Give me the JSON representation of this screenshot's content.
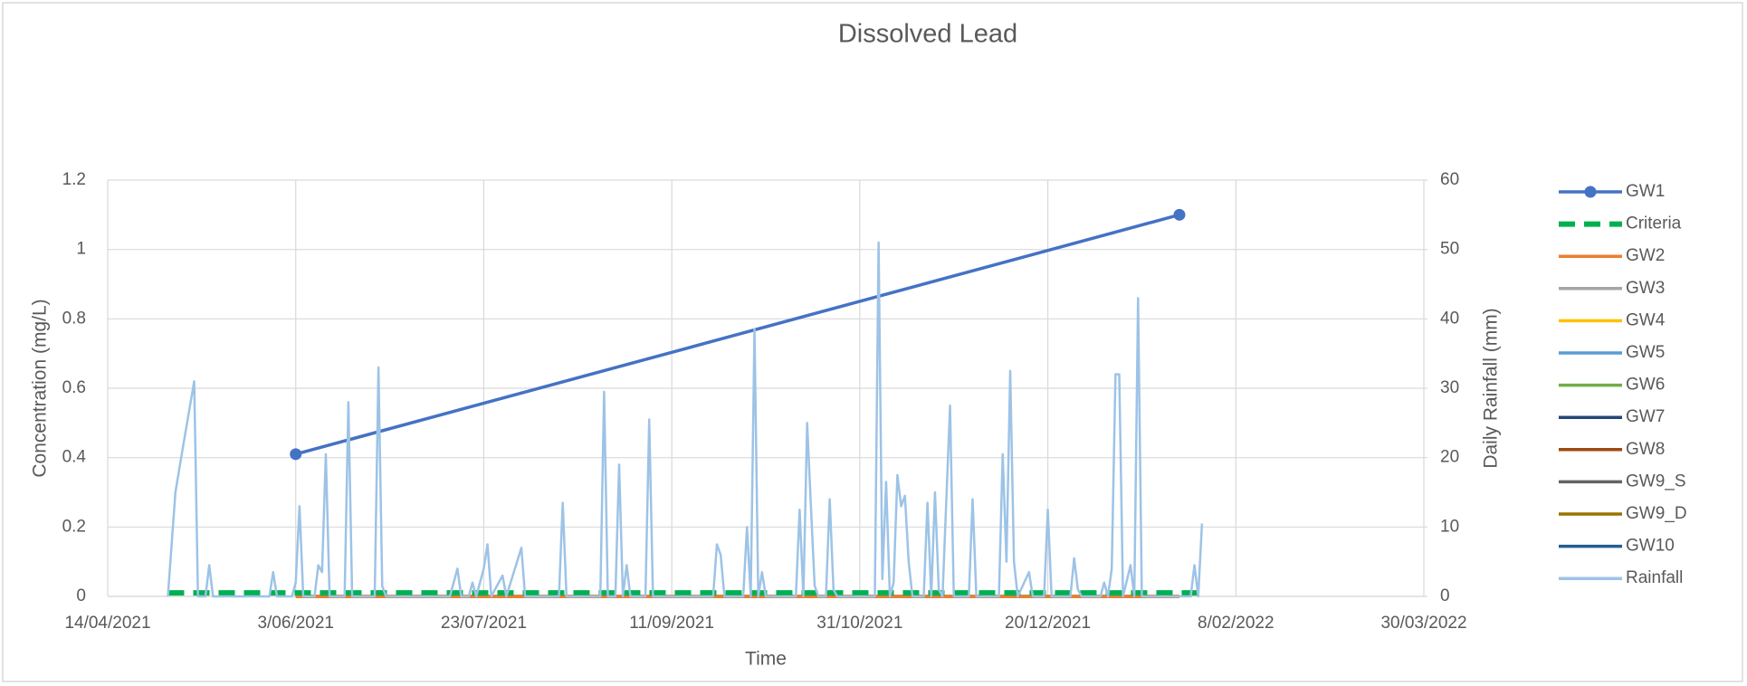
{
  "chart_data": {
    "type": "line",
    "title": "Dissolved Lead",
    "x_label": "Time",
    "y_label": "Concentration (mg/L)",
    "y2_label": "Daily Rainfall (mm)",
    "xlim": [
      "2021-04-14",
      "2022-03-30"
    ],
    "xticks": [
      {
        "value": "2021-04-14",
        "label": "14/04/2021"
      },
      {
        "value": "2021-06-03",
        "label": "3/06/2021"
      },
      {
        "value": "2021-07-23",
        "label": "23/07/2021"
      },
      {
        "value": "2021-09-11",
        "label": "11/09/2021"
      },
      {
        "value": "2021-10-31",
        "label": "31/10/2021"
      },
      {
        "value": "2021-12-20",
        "label": "20/12/2021"
      },
      {
        "value": "2022-02-08",
        "label": "8/02/2022"
      },
      {
        "value": "2022-03-30",
        "label": "30/03/2022"
      }
    ],
    "ylim": [
      0,
      1.2
    ],
    "yticks": [
      0,
      0.2,
      0.4,
      0.6,
      0.8,
      1,
      1.2
    ],
    "y2lim": [
      0,
      60
    ],
    "y2ticks": [
      0,
      10,
      20,
      30,
      40,
      50,
      60
    ],
    "grid": true,
    "legend": "right",
    "series": [
      {
        "name": "GW1",
        "color": "#4472c4",
        "marker": true,
        "x": [
          "2021-06-03",
          "2022-01-24"
        ],
        "values": [
          0.41,
          1.1
        ]
      },
      {
        "name": "Criteria",
        "color": "#00b050",
        "dash": true,
        "x": [
          "2021-04-30",
          "2022-01-30"
        ],
        "values": [
          0.01,
          0.01
        ]
      },
      {
        "name": "GW2",
        "color": "#ed7d31",
        "x": [
          "2021-06-03",
          "2022-01-24"
        ],
        "values": [
          0,
          0
        ]
      },
      {
        "name": "GW3",
        "color": "#a5a5a5",
        "x": [
          "2021-06-03",
          "2022-01-24"
        ],
        "values": [
          0,
          0
        ]
      },
      {
        "name": "GW4",
        "color": "#ffc000",
        "x": [
          "2021-06-03",
          "2022-01-24"
        ],
        "values": [
          0,
          0
        ]
      },
      {
        "name": "GW5",
        "color": "#5b9bd5",
        "x": [
          "2021-06-03",
          "2022-01-24"
        ],
        "values": [
          0,
          0
        ]
      },
      {
        "name": "GW6",
        "color": "#70ad47",
        "x": [
          "2021-06-03",
          "2022-01-24"
        ],
        "values": [
          0,
          0
        ]
      },
      {
        "name": "GW7",
        "color": "#264478",
        "x": [
          "2021-06-03",
          "2022-01-24"
        ],
        "values": [
          0,
          0
        ]
      },
      {
        "name": "GW8",
        "color": "#9e480e",
        "x": [
          "2021-06-03",
          "2022-01-24"
        ],
        "values": [
          0,
          0
        ]
      },
      {
        "name": "GW9_S",
        "color": "#636363",
        "x": [
          "2021-06-03",
          "2022-01-24"
        ],
        "values": [
          0,
          0
        ]
      },
      {
        "name": "GW9_D",
        "color": "#997300",
        "x": [
          "2021-06-03",
          "2022-01-24"
        ],
        "values": [
          0,
          0
        ]
      },
      {
        "name": "GW10",
        "color": "#255e91",
        "x": [
          "2021-06-03",
          "2022-01-24"
        ],
        "values": [
          0,
          0
        ]
      },
      {
        "name": "Rainfall",
        "color": "#9dc3e6",
        "axis": "y2",
        "x": [
          "2021-04-30",
          "2021-05-02",
          "2021-05-04",
          "2021-05-07",
          "2021-05-08",
          "2021-05-10",
          "2021-05-11",
          "2021-05-12",
          "2021-05-27",
          "2021-05-28",
          "2021-05-29",
          "2021-06-02",
          "2021-06-03",
          "2021-06-04",
          "2021-06-05",
          "2021-06-08",
          "2021-06-09",
          "2021-06-10",
          "2021-06-11",
          "2021-06-12",
          "2021-06-16",
          "2021-06-17",
          "2021-06-18",
          "2021-06-24",
          "2021-06-25",
          "2021-06-26",
          "2021-06-27",
          "2021-07-14",
          "2021-07-16",
          "2021-07-17",
          "2021-07-19",
          "2021-07-20",
          "2021-07-21",
          "2021-07-23",
          "2021-07-24",
          "2021-07-25",
          "2021-07-28",
          "2021-07-29",
          "2021-08-02",
          "2021-08-03",
          "2021-08-12",
          "2021-08-13",
          "2021-08-14",
          "2021-08-23",
          "2021-08-24",
          "2021-08-25",
          "2021-08-27",
          "2021-08-28",
          "2021-08-29",
          "2021-08-30",
          "2021-08-31",
          "2021-09-04",
          "2021-09-05",
          "2021-09-06",
          "2021-09-22",
          "2021-09-23",
          "2021-09-24",
          "2021-09-25",
          "2021-09-30",
          "2021-10-01",
          "2021-10-02",
          "2021-10-03",
          "2021-10-04",
          "2021-10-05",
          "2021-10-06",
          "2021-10-14",
          "2021-10-15",
          "2021-10-16",
          "2021-10-17",
          "2021-10-18",
          "2021-10-19",
          "2021-10-20",
          "2021-10-22",
          "2021-10-23",
          "2021-10-24",
          "2021-10-25",
          "2021-11-04",
          "2021-11-05",
          "2021-11-06",
          "2021-11-07",
          "2021-11-08",
          "2021-11-09",
          "2021-11-10",
          "2021-11-11",
          "2021-11-12",
          "2021-11-13",
          "2021-11-14",
          "2021-11-17",
          "2021-11-18",
          "2021-11-19",
          "2021-11-20",
          "2021-11-21",
          "2021-11-22",
          "2021-11-24",
          "2021-11-25",
          "2021-11-29",
          "2021-11-30",
          "2021-12-01",
          "2021-12-07",
          "2021-12-08",
          "2021-12-09",
          "2021-12-10",
          "2021-12-11",
          "2021-12-12",
          "2021-12-15",
          "2021-12-16",
          "2021-12-19",
          "2021-12-20",
          "2021-12-21",
          "2021-12-26",
          "2021-12-27",
          "2021-12-28",
          "2021-12-29",
          "2022-01-03",
          "2022-01-04",
          "2022-01-05",
          "2022-01-06",
          "2022-01-07",
          "2022-01-08",
          "2022-01-09",
          "2022-01-11",
          "2022-01-12",
          "2022-01-13",
          "2022-01-14",
          "2022-01-27",
          "2022-01-28",
          "2022-01-29",
          "2022-01-30"
        ],
        "values": [
          0,
          15,
          21.5,
          31,
          0,
          0,
          4.5,
          0,
          0,
          3.5,
          0,
          0,
          2,
          13,
          0,
          0,
          4.5,
          3.5,
          20.5,
          0,
          0,
          28,
          0,
          0,
          33,
          1.5,
          0,
          0,
          4,
          0,
          0,
          2,
          0,
          4,
          7.5,
          0,
          3,
          0,
          7,
          0,
          0,
          13.5,
          0,
          0,
          29.5,
          0,
          0,
          19,
          0,
          4.5,
          0,
          0,
          25.5,
          0,
          0,
          7.5,
          6,
          0,
          0,
          10,
          0,
          38.5,
          0,
          3.5,
          0,
          0,
          12.5,
          0,
          25,
          13,
          1.5,
          0,
          0,
          14,
          1,
          0,
          0,
          51,
          2.5,
          16.5,
          0,
          2,
          17.5,
          13,
          14.5,
          5,
          0,
          0,
          13.5,
          0,
          15,
          1,
          0,
          27.5,
          0,
          0,
          14,
          0,
          0,
          20.5,
          5,
          32.5,
          5,
          0,
          3.5,
          0,
          0,
          12.5,
          0,
          0,
          5.5,
          1,
          0,
          0,
          2,
          0,
          4,
          32,
          32,
          0,
          4.5,
          0,
          43,
          0,
          0,
          4.5,
          0,
          10.5
        ]
      }
    ]
  }
}
